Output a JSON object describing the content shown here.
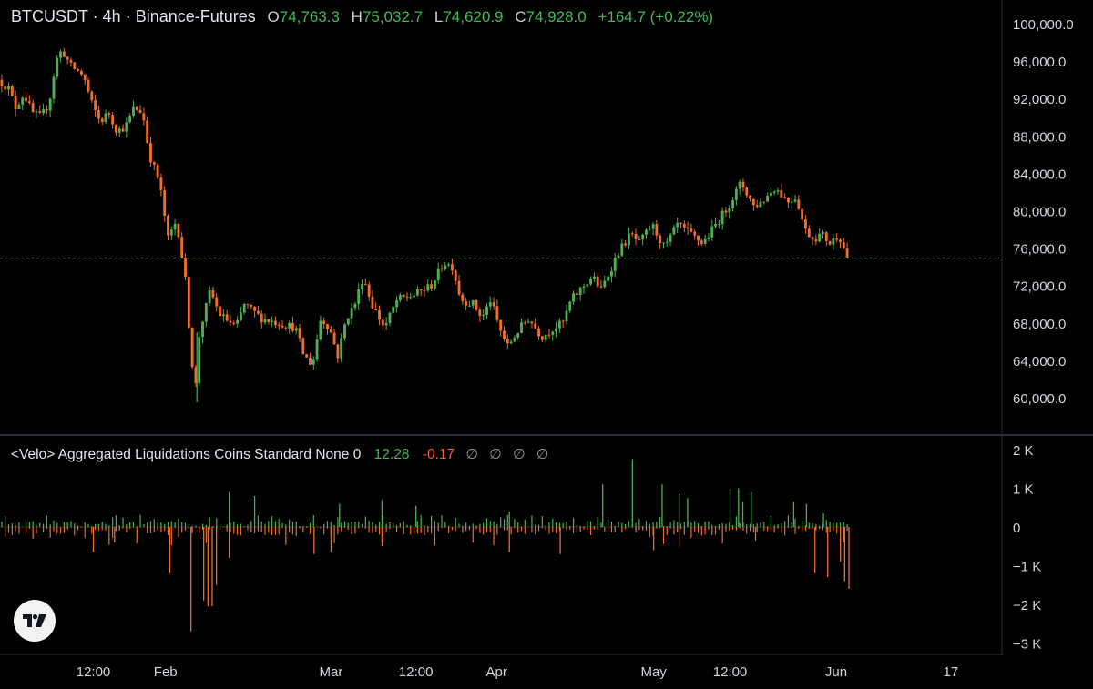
{
  "header": {
    "symbol_line": "BTCUSDT · 4h · Binance-Futures",
    "open_label": "O",
    "open": "74,763.3",
    "high_label": "H",
    "high": "75,032.7",
    "low_label": "L",
    "low": "74,620.9",
    "close_label": "C",
    "close": "74,928.0",
    "change": "+164.7 (+0.22%)"
  },
  "indicator": {
    "name": "<Velo> Aggregated Liquidations Coins Standard None 0",
    "value_pos": "12.28",
    "value_neg": "-0.17",
    "nan_values": [
      "∅",
      "∅",
      "∅",
      "∅"
    ]
  },
  "colors": {
    "up": "#4caf50",
    "down": "#ef6c2e",
    "last_price_line": "#4caf50",
    "axis_text": "#d1d4dc",
    "separator": "#2a2e39"
  },
  "logo_icon": "tradingview-logo-icon",
  "chart_data": [
    {
      "type": "candlestick",
      "price_axis_ticks": [
        "100,000.0",
        "96,000.0",
        "92,000.0",
        "88,000.0",
        "84,000.0",
        "80,000.0",
        "76,000.0",
        "72,000.0",
        "68,000.0",
        "64,000.0",
        "60,000.0"
      ],
      "price_axis_values": [
        100000,
        96000,
        92000,
        88000,
        84000,
        80000,
        76000,
        72000,
        68000,
        64000,
        60000
      ],
      "ylim": [
        57500,
        101500
      ],
      "last_price": 74928.0,
      "grid": false,
      "path_key_points": [
        [
          0,
          94000
        ],
        [
          0.013,
          93000
        ],
        [
          0.02,
          91000
        ],
        [
          0.03,
          92500
        ],
        [
          0.04,
          90500
        ],
        [
          0.05,
          90000
        ],
        [
          0.06,
          91500
        ],
        [
          0.068,
          96000
        ],
        [
          0.075,
          97200
        ],
        [
          0.085,
          95500
        ],
        [
          0.1,
          94500
        ],
        [
          0.11,
          91500
        ],
        [
          0.12,
          89500
        ],
        [
          0.13,
          90500
        ],
        [
          0.14,
          88500
        ],
        [
          0.15,
          89000
        ],
        [
          0.16,
          91000
        ],
        [
          0.17,
          90500
        ],
        [
          0.178,
          86000
        ],
        [
          0.19,
          83000
        ],
        [
          0.2,
          77000
        ],
        [
          0.21,
          79000
        ],
        [
          0.22,
          73000
        ],
        [
          0.227,
          65000
        ],
        [
          0.232,
          60500
        ],
        [
          0.237,
          67000
        ],
        [
          0.25,
          71500
        ],
        [
          0.26,
          69000
        ],
        [
          0.28,
          67500
        ],
        [
          0.29,
          70000
        ],
        [
          0.31,
          68500
        ],
        [
          0.33,
          68000
        ],
        [
          0.35,
          67500
        ],
        [
          0.36,
          64500
        ],
        [
          0.37,
          63500
        ],
        [
          0.38,
          68500
        ],
        [
          0.39,
          67500
        ],
        [
          0.4,
          64500
        ],
        [
          0.41,
          68500
        ],
        [
          0.42,
          70000
        ],
        [
          0.43,
          73000
        ],
        [
          0.44,
          70000
        ],
        [
          0.455,
          67500
        ],
        [
          0.47,
          70500
        ],
        [
          0.49,
          71000
        ],
        [
          0.51,
          72000
        ],
        [
          0.525,
          74500
        ],
        [
          0.535,
          74000
        ],
        [
          0.545,
          70500
        ],
        [
          0.56,
          70000
        ],
        [
          0.57,
          68500
        ],
        [
          0.58,
          70500
        ],
        [
          0.59,
          67500
        ],
        [
          0.6,
          65500
        ],
        [
          0.615,
          67500
        ],
        [
          0.625,
          68500
        ],
        [
          0.64,
          66500
        ],
        [
          0.655,
          67500
        ],
        [
          0.665,
          68000
        ],
        [
          0.675,
          70500
        ],
        [
          0.69,
          72000
        ],
        [
          0.7,
          73000
        ],
        [
          0.71,
          71500
        ],
        [
          0.72,
          73500
        ],
        [
          0.73,
          75500
        ],
        [
          0.745,
          77500
        ],
        [
          0.755,
          76500
        ],
        [
          0.77,
          78500
        ],
        [
          0.785,
          76000
        ],
        [
          0.8,
          78500
        ],
        [
          0.815,
          77500
        ],
        [
          0.83,
          76500
        ],
        [
          0.845,
          78500
        ],
        [
          0.86,
          80500
        ],
        [
          0.875,
          83000
        ],
        [
          0.89,
          80500
        ],
        [
          0.9,
          81000
        ],
        [
          0.915,
          82500
        ],
        [
          0.93,
          81000
        ],
        [
          0.94,
          81500
        ],
        [
          0.95,
          78000
        ],
        [
          0.96,
          77000
        ],
        [
          0.97,
          77500
        ],
        [
          0.98,
          76500
        ],
        [
          0.99,
          77500
        ],
        [
          1,
          74928
        ]
      ],
      "n_candles": 245
    },
    {
      "type": "bar",
      "name": "<Velo> Aggregated Liquidations",
      "axis_ticks": [
        "2 K",
        "1 K",
        "0",
        "−1 K",
        "−2 K",
        "−3 K"
      ],
      "axis_values": [
        2000,
        1000,
        0,
        -1000,
        -2000,
        -3000
      ],
      "ylim": [
        -3000,
        2000
      ],
      "positive_spikes": [
        [
          0.27,
          900
        ],
        [
          0.3,
          800
        ],
        [
          0.4,
          600
        ],
        [
          0.45,
          700
        ],
        [
          0.49,
          550
        ],
        [
          0.6,
          400
        ],
        [
          0.71,
          1100
        ],
        [
          0.78,
          1100
        ],
        [
          0.8,
          850
        ],
        [
          0.81,
          750
        ],
        [
          0.875,
          650
        ],
        [
          0.86,
          1000
        ],
        [
          0.87,
          1000
        ],
        [
          0.885,
          900
        ],
        [
          0.935,
          650
        ],
        [
          0.95,
          600
        ],
        [
          0.97,
          350
        ]
      ],
      "negative_spikes": [
        [
          0.11,
          -650
        ],
        [
          0.135,
          -400
        ],
        [
          0.2,
          -1200
        ],
        [
          0.225,
          -2700
        ],
        [
          0.24,
          -1900
        ],
        [
          0.245,
          -2050
        ],
        [
          0.25,
          -2050
        ],
        [
          0.255,
          -1500
        ],
        [
          0.27,
          -800
        ],
        [
          0.37,
          -700
        ],
        [
          0.39,
          -650
        ],
        [
          0.45,
          -500
        ],
        [
          0.6,
          -650
        ],
        [
          0.66,
          -700
        ],
        [
          0.77,
          -600
        ],
        [
          0.8,
          -500
        ],
        [
          0.89,
          -350
        ],
        [
          0.96,
          -1200
        ],
        [
          0.975,
          -1300
        ],
        [
          0.99,
          -900
        ],
        [
          0.995,
          -1400
        ],
        [
          1,
          -1600
        ]
      ]
    }
  ],
  "time_axis": {
    "labels": [
      "12:00",
      "Feb",
      "Mar",
      "12:00",
      "Apr",
      "May",
      "12:00",
      "Jun",
      "17"
    ],
    "positions": [
      0.11,
      0.195,
      0.39,
      0.49,
      0.585,
      0.77,
      0.86,
      0.985,
      1.12
    ]
  }
}
